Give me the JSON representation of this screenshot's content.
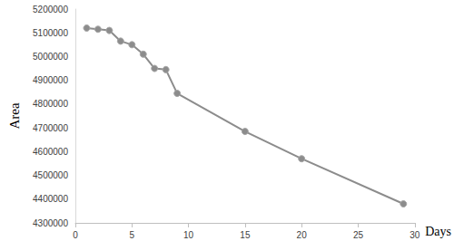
{
  "chart_data": {
    "type": "line",
    "x_label": "Days",
    "y_label": "Area",
    "x": [
      1,
      2,
      3,
      4,
      5,
      6,
      7,
      8,
      9,
      15,
      20,
      29
    ],
    "values": [
      5120000,
      5115000,
      5110000,
      5065000,
      5050000,
      5010000,
      4950000,
      4945000,
      4845000,
      4685000,
      4570000,
      4380000
    ],
    "color": "#8c8c8c",
    "marker": "circle",
    "xlim": [
      0,
      30
    ],
    "xticks": [
      0,
      5,
      10,
      15,
      20,
      25,
      30
    ],
    "ylim": [
      4300000,
      5200000
    ],
    "yticks": [
      4300000,
      4400000,
      4500000,
      4600000,
      4700000,
      4800000,
      4900000,
      5000000,
      5100000,
      5200000
    ],
    "grid": false
  }
}
